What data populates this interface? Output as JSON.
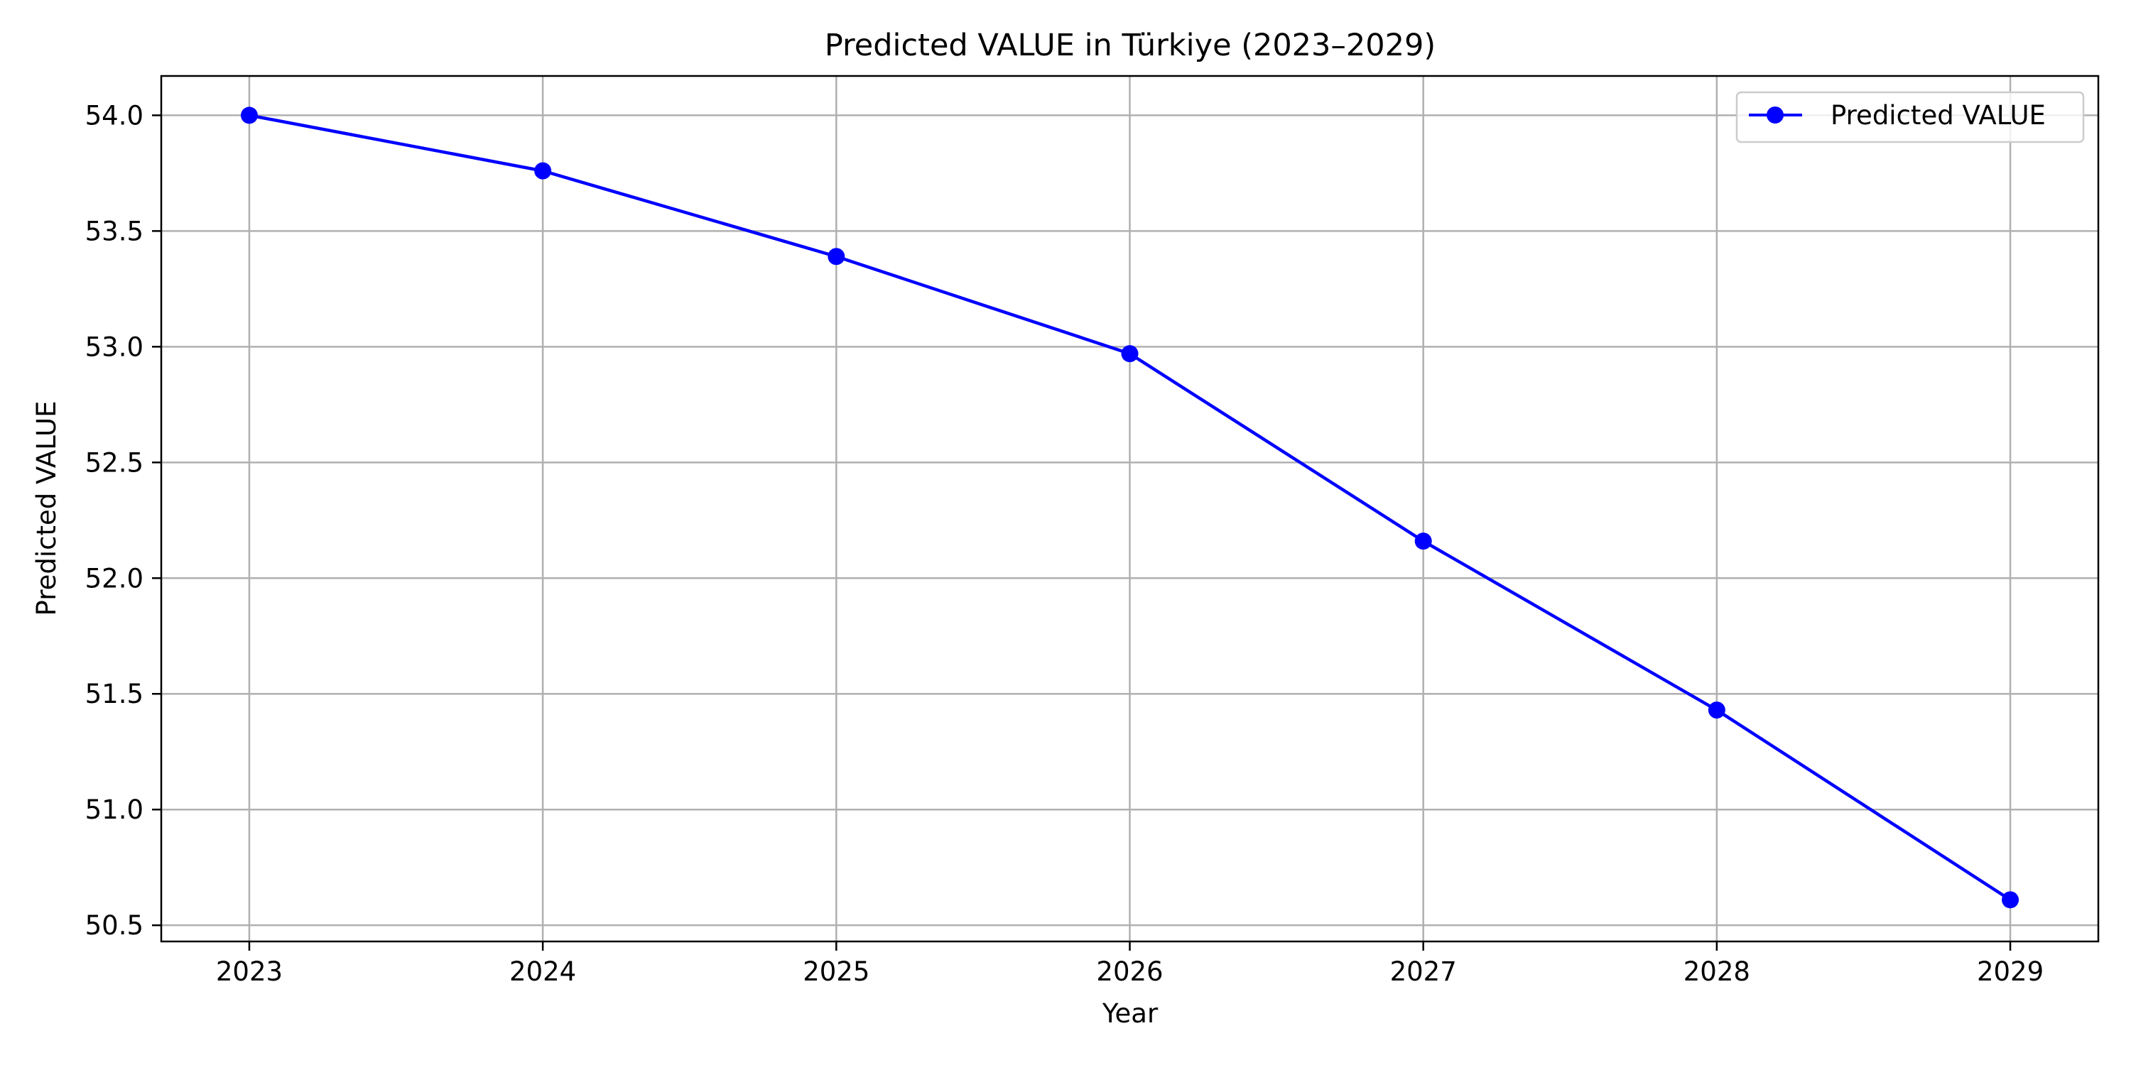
{
  "chart_data": {
    "type": "line",
    "title": "Predicted VALUE in Türkiye (2023–2029)",
    "xlabel": "Year",
    "ylabel": "Predicted VALUE",
    "x": [
      2023,
      2024,
      2025,
      2026,
      2027,
      2028,
      2029
    ],
    "x_tick_labels": [
      "2023",
      "2024",
      "2025",
      "2026",
      "2027",
      "2028",
      "2029"
    ],
    "y_ticks": [
      50.5,
      51.0,
      51.5,
      52.0,
      52.5,
      53.0,
      53.5,
      54.0
    ],
    "y_tick_labels": [
      "50.5",
      "51.0",
      "51.5",
      "52.0",
      "52.5",
      "53.0",
      "53.5",
      "54.0"
    ],
    "xlim": [
      2022.7,
      2029.3
    ],
    "ylim": [
      50.43,
      54.17
    ],
    "grid": true,
    "legend_position": "top-right",
    "series": [
      {
        "name": "Predicted VALUE",
        "color": "#0000ff",
        "marker": "circle",
        "values": [
          54.0,
          53.76,
          53.39,
          52.97,
          52.16,
          51.43,
          50.61
        ]
      }
    ]
  }
}
